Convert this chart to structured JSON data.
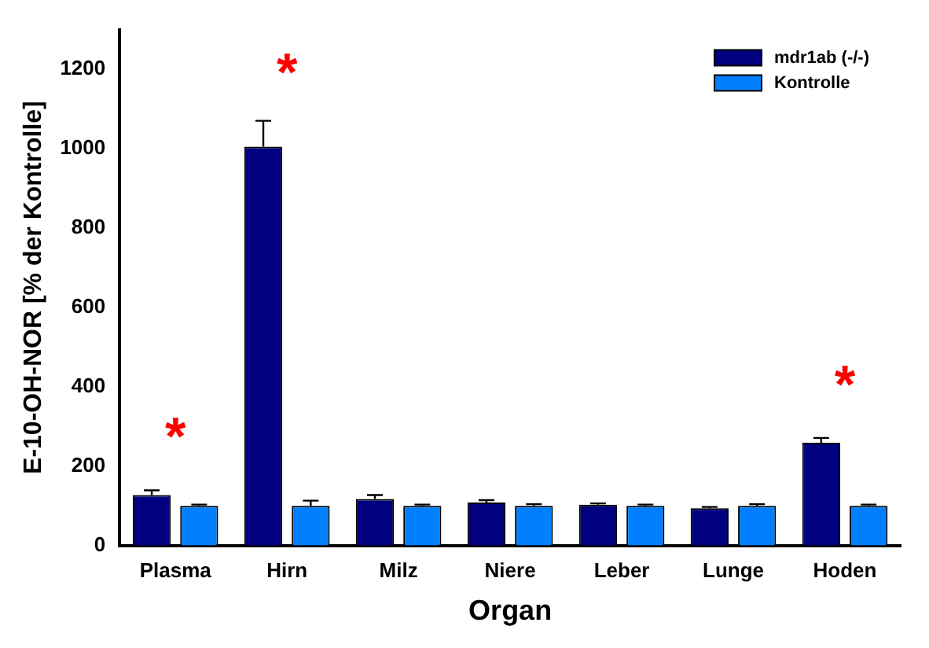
{
  "chart_data": {
    "type": "bar",
    "xlabel": "Organ",
    "ylabel": "E-10-OH-NOR [% der Kontrolle]",
    "categories": [
      "Plasma",
      "Hirn",
      "Milz",
      "Niere",
      "Leber",
      "Lunge",
      "Hoden"
    ],
    "series": [
      {
        "name": "mdr1ab (-/-)",
        "color": "#000080",
        "values": [
          127,
          1005,
          117,
          108,
          103,
          94,
          259
        ],
        "errors": [
          12,
          65,
          10,
          6,
          3,
          3,
          12
        ]
      },
      {
        "name": "Kontrolle",
        "color": "#0080ff",
        "values": [
          100,
          100,
          100,
          100,
          100,
          100,
          100
        ],
        "errors": [
          3,
          13,
          3,
          4,
          3,
          4,
          3
        ]
      }
    ],
    "ylim": [
      0,
      1300
    ],
    "yticks": [
      0,
      200,
      400,
      600,
      800,
      1000,
      1200
    ],
    "grid": false,
    "legend": "top right",
    "annotations": [
      {
        "text": "*",
        "x": "Plasma",
        "y": 127
      },
      {
        "text": "*",
        "x": "Hirn",
        "y": 1005
      },
      {
        "text": "*",
        "x": "Hoden",
        "y": 259
      }
    ]
  }
}
